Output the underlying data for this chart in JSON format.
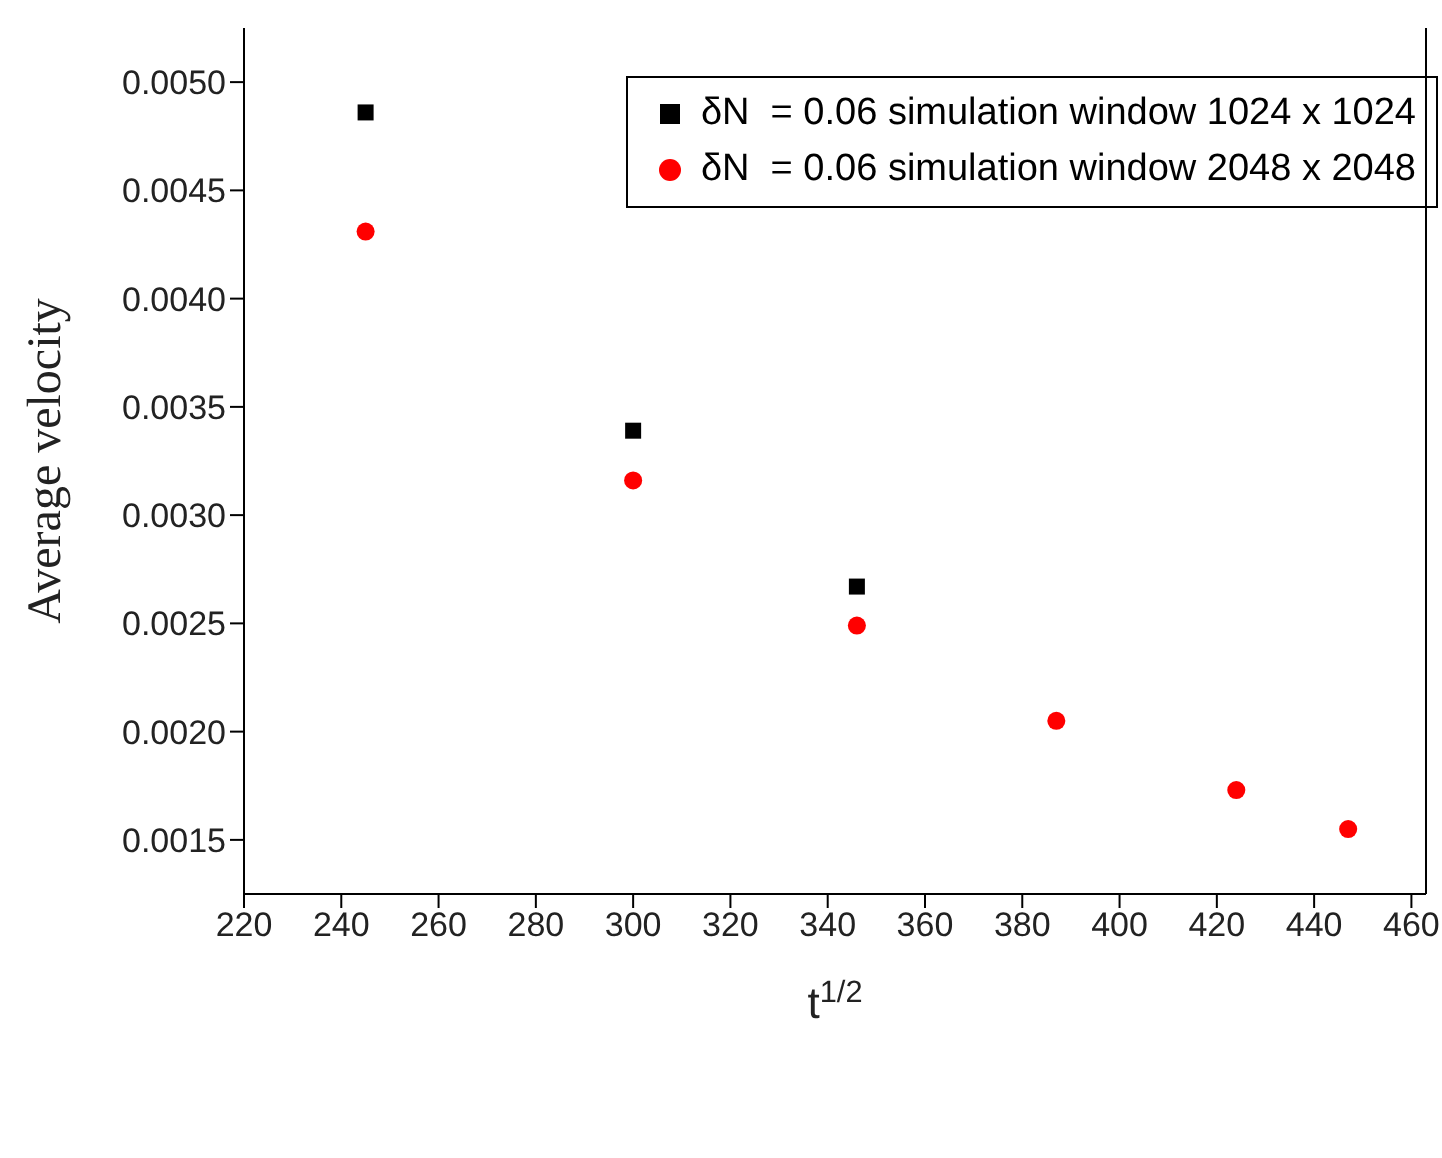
{
  "chart_data": {
    "type": "scatter",
    "xlabel": "t$^{1/2}$",
    "ylabel": "Average velocity",
    "xlim": [
      220,
      463
    ],
    "xticks": [
      220,
      240,
      260,
      280,
      300,
      320,
      340,
      360,
      380,
      400,
      420,
      440,
      460
    ],
    "ylim": [
      0.00125,
      0.00525
    ],
    "yticks": [
      {
        "value": 0.0015,
        "label": "0.0015"
      },
      {
        "value": 0.002,
        "label": "0.0020"
      },
      {
        "value": 0.0025,
        "label": "0.0025"
      },
      {
        "value": 0.003,
        "label": "0.0030"
      },
      {
        "value": 0.0035,
        "label": "0.0035"
      },
      {
        "value": 0.004,
        "label": "0.0040"
      },
      {
        "value": 0.0045,
        "label": "0.0045"
      },
      {
        "value": 0.005,
        "label": "0.0050"
      }
    ],
    "grid": false,
    "legend": "top right",
    "series": [
      {
        "name": "δN  = 0.06 simulation window 1024 x 1024",
        "color": "#000000",
        "marker": "square",
        "x": [
          245,
          300,
          346
        ],
        "values": [
          0.00486,
          0.00339,
          0.00267
        ]
      },
      {
        "name": "δN  = 0.06 simulation window 2048 x 2048",
        "color": "#ff0000",
        "marker": "circle",
        "x": [
          245,
          300,
          346,
          387,
          424,
          447
        ],
        "values": [
          0.00431,
          0.00316,
          0.00249,
          0.00205,
          0.00173,
          0.00155
        ]
      }
    ]
  }
}
